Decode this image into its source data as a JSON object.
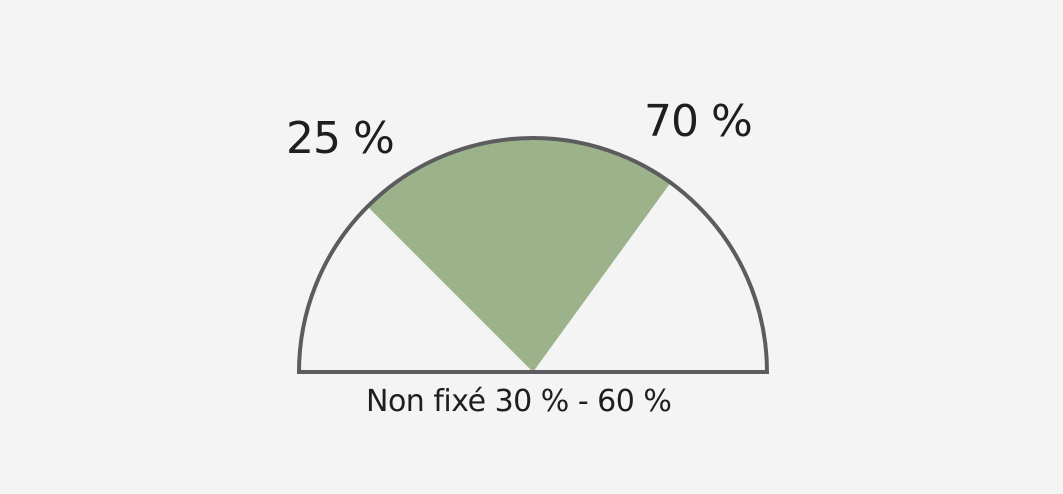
{
  "gauge": {
    "low_label": "25 %",
    "high_label": "70 %",
    "low_value": 25,
    "high_value": 70,
    "caption": "Non fixé 30 % - 60 %"
  },
  "colors": {
    "background": "#f4f4f4",
    "outline": "#5c5c5e",
    "wedge": "#9bb28a"
  }
}
